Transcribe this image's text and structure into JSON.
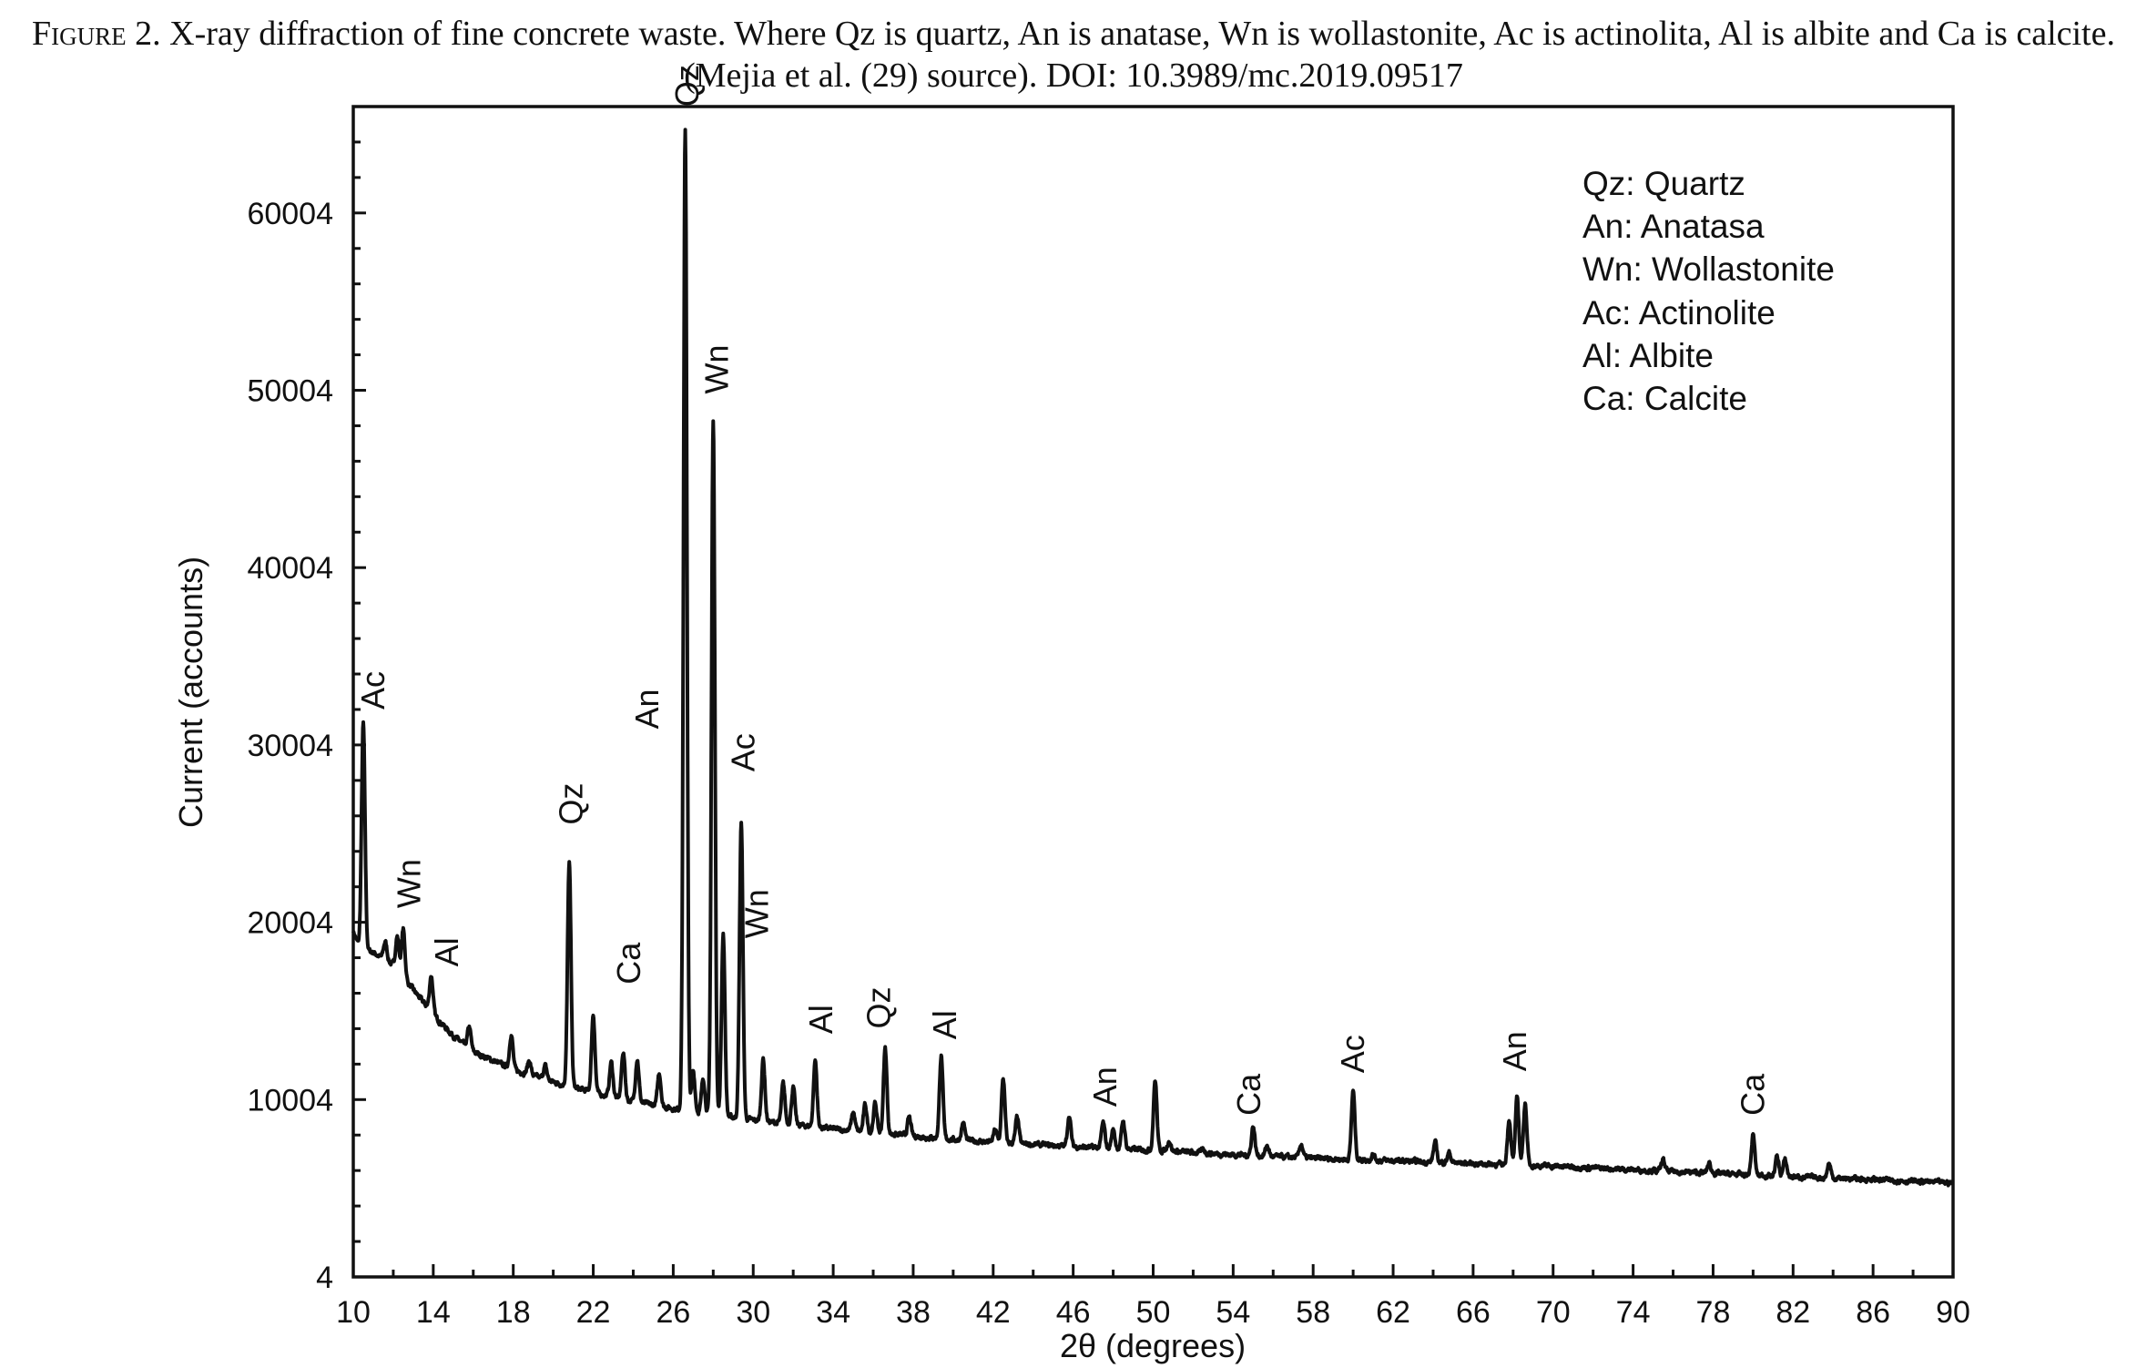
{
  "caption": {
    "prefix": "Figure 2.",
    "text": " X-ray diffraction of fine concrete waste. Where Qz is quartz, An is anatase, Wn is wollastonite, Ac is actinolita, Al is albite and Ca is calcite. (Mejia et al. (29) source). DOI: 10.3989/mc.2019.09517"
  },
  "colors": {
    "line": "#111111",
    "axis": "#111111"
  },
  "chart_data": {
    "type": "line",
    "xlabel": "2θ (degrees)",
    "ylabel": "Current (accounts)",
    "xlim": [
      10,
      90
    ],
    "ylim": [
      4,
      66004
    ],
    "x_ticks": [
      10,
      14,
      18,
      22,
      26,
      30,
      34,
      38,
      42,
      46,
      50,
      54,
      58,
      62,
      66,
      70,
      74,
      78,
      82,
      86,
      90
    ],
    "y_ticks": [
      4,
      10004,
      20004,
      30004,
      40004,
      50004,
      60004
    ],
    "grid": false,
    "legend_position": "top-right",
    "legend": [
      "Qz: Quartz",
      "An: Anatasa",
      "Wn: Wollastonite",
      "Ac: Actinolite",
      "Al: Albite",
      "Ca: Calcite"
    ],
    "background": [
      [
        10.0,
        19500
      ],
      [
        10.3,
        18600
      ],
      [
        11,
        18300
      ],
      [
        12,
        17600
      ],
      [
        13,
        16200
      ],
      [
        14,
        14800
      ],
      [
        15,
        13600
      ],
      [
        16,
        12700
      ],
      [
        18,
        11700
      ],
      [
        20,
        11000
      ],
      [
        22,
        10400
      ],
      [
        24,
        9900
      ],
      [
        26,
        9500
      ],
      [
        28,
        9150
      ],
      [
        30,
        8850
      ],
      [
        32,
        8600
      ],
      [
        34,
        8350
      ],
      [
        36,
        8150
      ],
      [
        38,
        7950
      ],
      [
        40,
        7750
      ],
      [
        42,
        7600
      ],
      [
        46,
        7350
      ],
      [
        50,
        7150
      ],
      [
        54,
        6900
      ],
      [
        58,
        6700
      ],
      [
        62,
        6550
      ],
      [
        66,
        6400
      ],
      [
        70,
        6250
      ],
      [
        74,
        6050
      ],
      [
        78,
        5850
      ],
      [
        82,
        5650
      ],
      [
        86,
        5500
      ],
      [
        90,
        5300
      ]
    ],
    "peaks": [
      {
        "x": 10.5,
        "y": 31200
      },
      {
        "x": 11.6,
        "y": 18900
      },
      {
        "x": 12.2,
        "y": 19200
      },
      {
        "x": 12.5,
        "y": 19600
      },
      {
        "x": 13.9,
        "y": 17000
      },
      {
        "x": 15.8,
        "y": 14100
      },
      {
        "x": 17.9,
        "y": 13700
      },
      {
        "x": 18.8,
        "y": 12200
      },
      {
        "x": 19.6,
        "y": 11900
      },
      {
        "x": 20.8,
        "y": 23400
      },
      {
        "x": 22.0,
        "y": 14800
      },
      {
        "x": 22.9,
        "y": 12100
      },
      {
        "x": 23.5,
        "y": 12700
      },
      {
        "x": 24.2,
        "y": 12300
      },
      {
        "x": 25.3,
        "y": 11500
      },
      {
        "x": 26.6,
        "y": 64700
      },
      {
        "x": 27.0,
        "y": 11600
      },
      {
        "x": 27.5,
        "y": 11200
      },
      {
        "x": 28.0,
        "y": 48200
      },
      {
        "x": 28.5,
        "y": 19400
      },
      {
        "x": 29.4,
        "y": 25600
      },
      {
        "x": 30.5,
        "y": 12300
      },
      {
        "x": 31.5,
        "y": 10900
      },
      {
        "x": 32.0,
        "y": 10700
      },
      {
        "x": 33.1,
        "y": 12200
      },
      {
        "x": 35.0,
        "y": 9300
      },
      {
        "x": 35.6,
        "y": 9700
      },
      {
        "x": 36.1,
        "y": 9800
      },
      {
        "x": 36.6,
        "y": 12900
      },
      {
        "x": 37.8,
        "y": 9000
      },
      {
        "x": 39.4,
        "y": 12500
      },
      {
        "x": 40.5,
        "y": 8700
      },
      {
        "x": 42.1,
        "y": 8300
      },
      {
        "x": 42.5,
        "y": 11200
      },
      {
        "x": 43.2,
        "y": 9000
      },
      {
        "x": 45.8,
        "y": 9100
      },
      {
        "x": 47.5,
        "y": 8700
      },
      {
        "x": 48.0,
        "y": 8300
      },
      {
        "x": 48.5,
        "y": 8800
      },
      {
        "x": 50.1,
        "y": 11100
      },
      {
        "x": 50.8,
        "y": 7700
      },
      {
        "x": 52.5,
        "y": 7200
      },
      {
        "x": 55.0,
        "y": 8500
      },
      {
        "x": 55.7,
        "y": 7400
      },
      {
        "x": 57.4,
        "y": 7500
      },
      {
        "x": 60.0,
        "y": 10500
      },
      {
        "x": 61.0,
        "y": 6900
      },
      {
        "x": 64.1,
        "y": 7600
      },
      {
        "x": 64.8,
        "y": 7000
      },
      {
        "x": 67.8,
        "y": 8900
      },
      {
        "x": 68.2,
        "y": 10100
      },
      {
        "x": 68.6,
        "y": 9800
      },
      {
        "x": 75.5,
        "y": 6600
      },
      {
        "x": 77.8,
        "y": 6400
      },
      {
        "x": 80.0,
        "y": 8000
      },
      {
        "x": 81.2,
        "y": 6800
      },
      {
        "x": 81.6,
        "y": 6600
      },
      {
        "x": 83.8,
        "y": 6400
      }
    ],
    "annotations": [
      {
        "label": "Ac",
        "x": 11.0,
        "y": 32000
      },
      {
        "label": "Wn",
        "x": 12.8,
        "y": 20800
      },
      {
        "label": "Al",
        "x": 14.7,
        "y": 17500
      },
      {
        "label": "Qz",
        "x": 20.9,
        "y": 25500
      },
      {
        "label": "Ca",
        "x": 23.8,
        "y": 16500
      },
      {
        "label": "An",
        "x": 24.7,
        "y": 30900
      },
      {
        "label": "Qz",
        "x": 26.7,
        "y": 66000
      },
      {
        "label": "Wn",
        "x": 28.2,
        "y": 49800
      },
      {
        "label": "Ac",
        "x": 29.5,
        "y": 28500
      },
      {
        "label": "Wn",
        "x": 30.2,
        "y": 19100
      },
      {
        "label": "Al",
        "x": 33.4,
        "y": 13700
      },
      {
        "label": "Qz",
        "x": 36.3,
        "y": 14000
      },
      {
        "label": "Al",
        "x": 39.6,
        "y": 13400
      },
      {
        "label": "An",
        "x": 47.6,
        "y": 9600
      },
      {
        "label": "Ca",
        "x": 54.8,
        "y": 9100
      },
      {
        "label": "Ac",
        "x": 60.0,
        "y": 11500
      },
      {
        "label": "An",
        "x": 68.1,
        "y": 11600
      },
      {
        "label": "Ca",
        "x": 80.0,
        "y": 9100
      }
    ]
  }
}
